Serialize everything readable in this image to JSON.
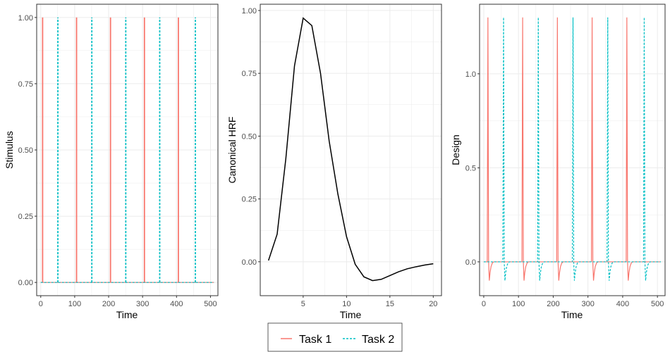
{
  "colors": {
    "task1": "#F8766D",
    "task2": "#00BFC4",
    "hrf": "#000000",
    "grid": "#ebebeb",
    "panel_border": "#333333"
  },
  "legend": {
    "task1": "Task 1",
    "task2": "Task 2"
  },
  "chart_data": [
    {
      "id": "stimulus",
      "type": "line",
      "title": "",
      "xlabel": "Time",
      "ylabel": "Stimulus",
      "xlim": [
        -12,
        522
      ],
      "ylim": [
        -0.05,
        1.05
      ],
      "xticks": [
        0,
        100,
        200,
        300,
        400,
        500
      ],
      "xtick_labels": [
        "0",
        "100",
        "200",
        "300",
        "400",
        "500"
      ],
      "yticks": [
        0,
        0.25,
        0.5,
        0.75,
        1
      ],
      "ytick_labels": [
        "0.00",
        "0.25",
        "0.50",
        "0.75",
        "1.00"
      ],
      "series": [
        {
          "name": "Task 1",
          "key": "task1",
          "style": "solid",
          "onsets": [
            5,
            105,
            205,
            305,
            405
          ],
          "values_label": "stimulus = 1 at onsets, 0 elsewhere"
        },
        {
          "name": "Task 2",
          "key": "task2",
          "style": "dashed",
          "onsets": [
            50,
            150,
            250,
            350,
            455
          ],
          "values_label": "stimulus = 1 at onsets, 0 elsewhere"
        }
      ],
      "x_end": 510
    },
    {
      "id": "hrf",
      "type": "line",
      "title": "",
      "xlabel": "Time",
      "ylabel": "Canonical HRF",
      "xlim": [
        0.05,
        20.95
      ],
      "ylim": [
        -0.135,
        1.025
      ],
      "xticks": [
        5,
        10,
        15,
        20
      ],
      "xtick_labels": [
        "5",
        "10",
        "15",
        "20"
      ],
      "yticks": [
        0,
        0.25,
        0.5,
        0.75,
        1
      ],
      "ytick_labels": [
        "0.00",
        "0.25",
        "0.50",
        "0.75",
        "1.00"
      ],
      "series": [
        {
          "name": "HRF",
          "key": "hrf",
          "style": "solid",
          "x": [
            1,
            2,
            3,
            4,
            5,
            6,
            7,
            8,
            9,
            10,
            11,
            12,
            13,
            14,
            15,
            16,
            17,
            18,
            19,
            20
          ],
          "y": [
            0.005,
            0.11,
            0.41,
            0.78,
            0.97,
            0.94,
            0.75,
            0.48,
            0.27,
            0.1,
            -0.01,
            -0.06,
            -0.075,
            -0.07,
            -0.055,
            -0.04,
            -0.028,
            -0.02,
            -0.013,
            -0.008
          ]
        }
      ]
    },
    {
      "id": "design",
      "type": "line",
      "title": "",
      "xlabel": "Time",
      "ylabel": "Design",
      "xlim": [
        -12,
        522
      ],
      "ylim": [
        -0.18,
        1.37
      ],
      "xticks": [
        0,
        100,
        200,
        300,
        400,
        500
      ],
      "xtick_labels": [
        "0",
        "100",
        "200",
        "300",
        "400",
        "500"
      ],
      "yticks": [
        0,
        0.5,
        1
      ],
      "ytick_labels": [
        "0.0",
        "0.5",
        "1.0"
      ],
      "peak_value": 1.3,
      "undershoot_value": -0.1,
      "series": [
        {
          "name": "Task 1",
          "key": "task1",
          "style": "solid",
          "onsets": [
            10,
            110,
            210,
            310,
            410
          ]
        },
        {
          "name": "Task 2",
          "key": "task2",
          "style": "dashed",
          "onsets": [
            55,
            155,
            255,
            355,
            460
          ]
        }
      ],
      "x_end": 510
    }
  ]
}
